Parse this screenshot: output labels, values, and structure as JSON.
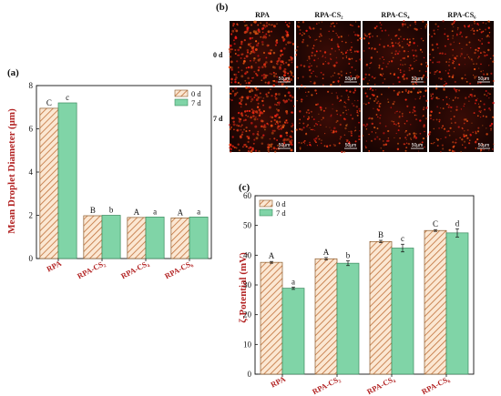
{
  "panel_a": {
    "letter": "(a)",
    "ylabel": "Mean Droplet Diameter (μm)"
  },
  "panel_b": {
    "letter": "(b)",
    "columns": [
      "RPA",
      "RPA-CS₂",
      "RPA-CS₄",
      "RPA-CS₆"
    ],
    "rows": [
      "0 d",
      "7 d"
    ],
    "scale_bar": "50μm"
  },
  "panel_c": {
    "letter": "(c)",
    "ylabel": "ζ-Potential (mV)"
  },
  "colors": {
    "hatch_fill": "#fbe7d2",
    "hatch_line": "#c0703a",
    "green_fill": "#80d4a7",
    "axis_red": "#b22222"
  },
  "chart_data": [
    {
      "type": "bar",
      "categories": [
        "RPA",
        "RPA-CS₂",
        "RPA-CS₄",
        "RPA-CS₆"
      ],
      "series": [
        {
          "name": "0 d",
          "values": [
            6.95,
            1.98,
            1.9,
            1.88
          ],
          "labels": [
            "C",
            "B",
            "A",
            "A"
          ]
        },
        {
          "name": "7 d",
          "values": [
            7.2,
            2.0,
            1.92,
            1.92
          ],
          "labels": [
            "c",
            "b",
            "a",
            "a"
          ]
        }
      ],
      "ylabel": "Mean Droplet Diameter (μm)",
      "ylim": [
        0,
        8
      ],
      "yticks": [
        0,
        2,
        4,
        6,
        8
      ],
      "legend": "top-right"
    },
    {
      "type": "bar",
      "categories": [
        "RPA",
        "RPA-CS₂",
        "RPA-CS₄",
        "RPA-CS₆"
      ],
      "series": [
        {
          "name": "0 d",
          "values": [
            37.6,
            38.8,
            44.6,
            48.3
          ],
          "errors": [
            0.3,
            0.4,
            0.4,
            0.3
          ],
          "labels": [
            "A",
            "A",
            "B",
            "C"
          ]
        },
        {
          "name": "7 d",
          "values": [
            28.9,
            37.3,
            42.4,
            47.5
          ],
          "errors": [
            0.4,
            0.8,
            1.3,
            1.4
          ],
          "labels": [
            "a",
            "b",
            "c",
            "d"
          ]
        }
      ],
      "ylabel": "ζ-Potential (mV)",
      "ylim": [
        0,
        60
      ],
      "yticks": [
        0,
        10,
        20,
        30,
        40,
        50,
        60
      ],
      "legend": "top-left"
    }
  ]
}
